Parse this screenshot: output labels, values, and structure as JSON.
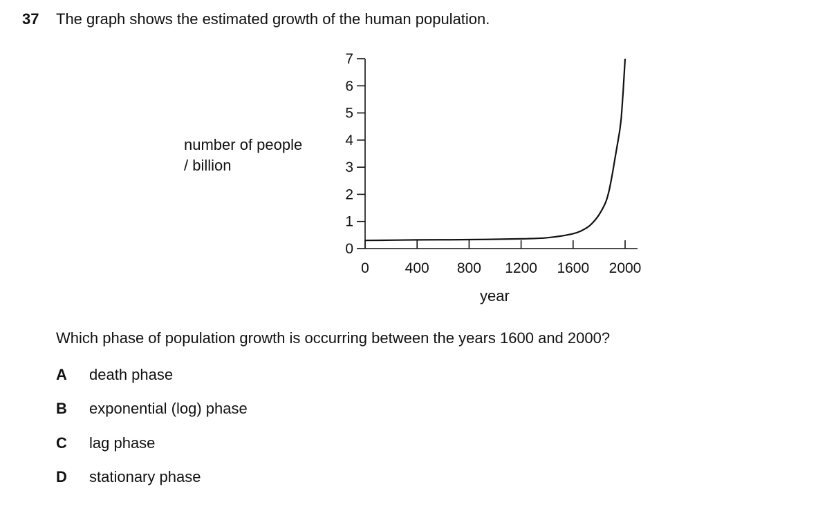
{
  "question": {
    "number": "37",
    "text": "The graph shows the estimated growth of the human population.",
    "prompt": "Which phase of population growth is occurring between the years 1600 and 2000?"
  },
  "options": [
    {
      "letter": "A",
      "text": "death phase"
    },
    {
      "letter": "B",
      "text": "exponential (log) phase"
    },
    {
      "letter": "C",
      "text": "lag phase"
    },
    {
      "letter": "D",
      "text": "stationary phase"
    }
  ],
  "chart_data": {
    "type": "line",
    "ylabel_line1": "number of people",
    "ylabel_line2": "/ billion",
    "xlabel": "year",
    "xlim": [
      0,
      2000
    ],
    "ylim": [
      0,
      7
    ],
    "xticks": [
      0,
      400,
      800,
      1200,
      1600,
      2000
    ],
    "yticks": [
      0,
      1,
      2,
      3,
      4,
      5,
      6,
      7
    ],
    "series": [
      {
        "x": [
          0,
          200,
          400,
          800,
          1200,
          1400,
          1600,
          1700,
          1750,
          1800,
          1850,
          1875,
          1900,
          1925,
          1950,
          1960,
          1970,
          1975,
          1985,
          2000
        ],
        "y": [
          0.3,
          0.31,
          0.32,
          0.33,
          0.36,
          0.4,
          0.55,
          0.75,
          0.95,
          1.25,
          1.7,
          2.1,
          2.7,
          3.4,
          4.1,
          4.4,
          4.8,
          5.1,
          5.8,
          7.0
        ]
      }
    ],
    "color": "#111111",
    "grid": false
  }
}
